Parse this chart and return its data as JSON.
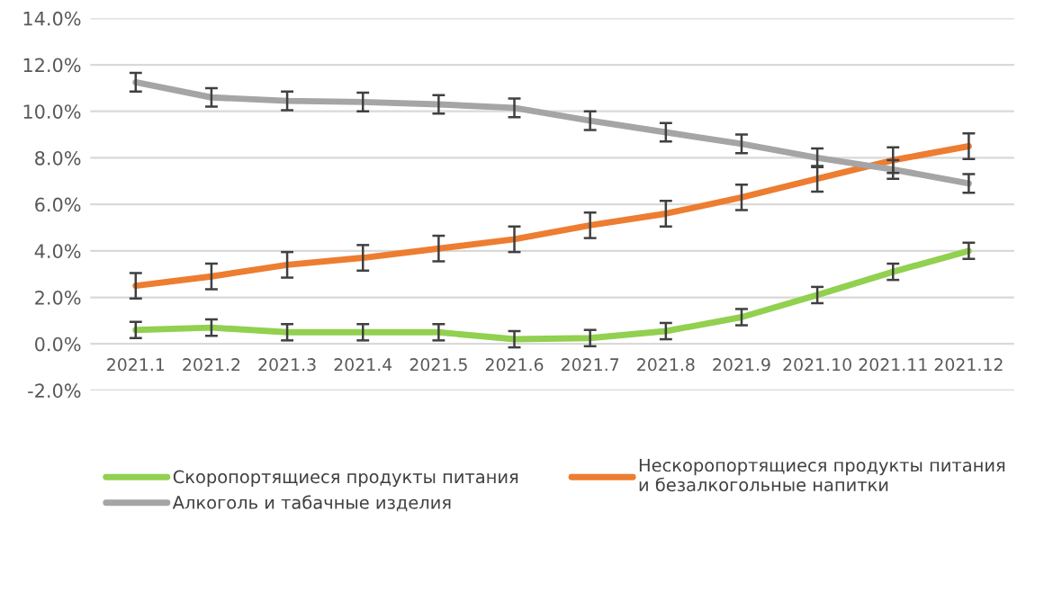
{
  "chart_data": {
    "type": "line",
    "categories": [
      "2021.1",
      "2021.2",
      "2021.3",
      "2021.4",
      "2021.5",
      "2021.6",
      "2021.7",
      "2021.8",
      "2021.9",
      "2021.10",
      "2021.11",
      "2021.12"
    ],
    "series": [
      {
        "name": "Скоропортящиеся продукты питания",
        "color": "#92d050",
        "values": [
          0.6,
          0.7,
          0.5,
          0.5,
          0.5,
          0.2,
          0.25,
          0.55,
          1.15,
          2.1,
          3.1,
          4.0
        ],
        "errors": [
          0.35,
          0.35,
          0.35,
          0.35,
          0.35,
          0.35,
          0.35,
          0.35,
          0.35,
          0.35,
          0.35,
          0.35
        ]
      },
      {
        "name": "Нескоропортящиеся продукты питания\nи безалкогольные напитки",
        "color": "#ed7d31",
        "values": [
          2.5,
          2.9,
          3.4,
          3.7,
          4.1,
          4.5,
          5.1,
          5.6,
          6.3,
          7.1,
          7.9,
          8.5
        ],
        "errors": [
          0.55,
          0.55,
          0.55,
          0.55,
          0.55,
          0.55,
          0.55,
          0.55,
          0.55,
          0.55,
          0.55,
          0.55
        ]
      },
      {
        "name": "Алкоголь и табачные изделия",
        "color": "#a5a5a5",
        "values": [
          11.25,
          10.6,
          10.45,
          10.4,
          10.3,
          10.15,
          9.6,
          9.1,
          8.6,
          8.0,
          7.5,
          6.9
        ],
        "errors": [
          0.4,
          0.4,
          0.4,
          0.4,
          0.4,
          0.4,
          0.4,
          0.4,
          0.4,
          0.4,
          0.4,
          0.4
        ]
      }
    ],
    "ylim": [
      -2,
      14
    ],
    "yticks": [
      {
        "value": -2,
        "label": "-2.0%"
      },
      {
        "value": 0,
        "label": "0.0%"
      },
      {
        "value": 2,
        "label": "2.0%"
      },
      {
        "value": 4,
        "label": "4.0%"
      },
      {
        "value": 6,
        "label": "6.0%"
      },
      {
        "value": 8,
        "label": "8.0%"
      },
      {
        "value": 10,
        "label": "10.0%"
      },
      {
        "value": 12,
        "label": "12.0%"
      },
      {
        "value": 14,
        "label": "14.0%"
      }
    ],
    "grid": "y",
    "legend": "bottom",
    "marker": "none",
    "line_style": "solid"
  }
}
